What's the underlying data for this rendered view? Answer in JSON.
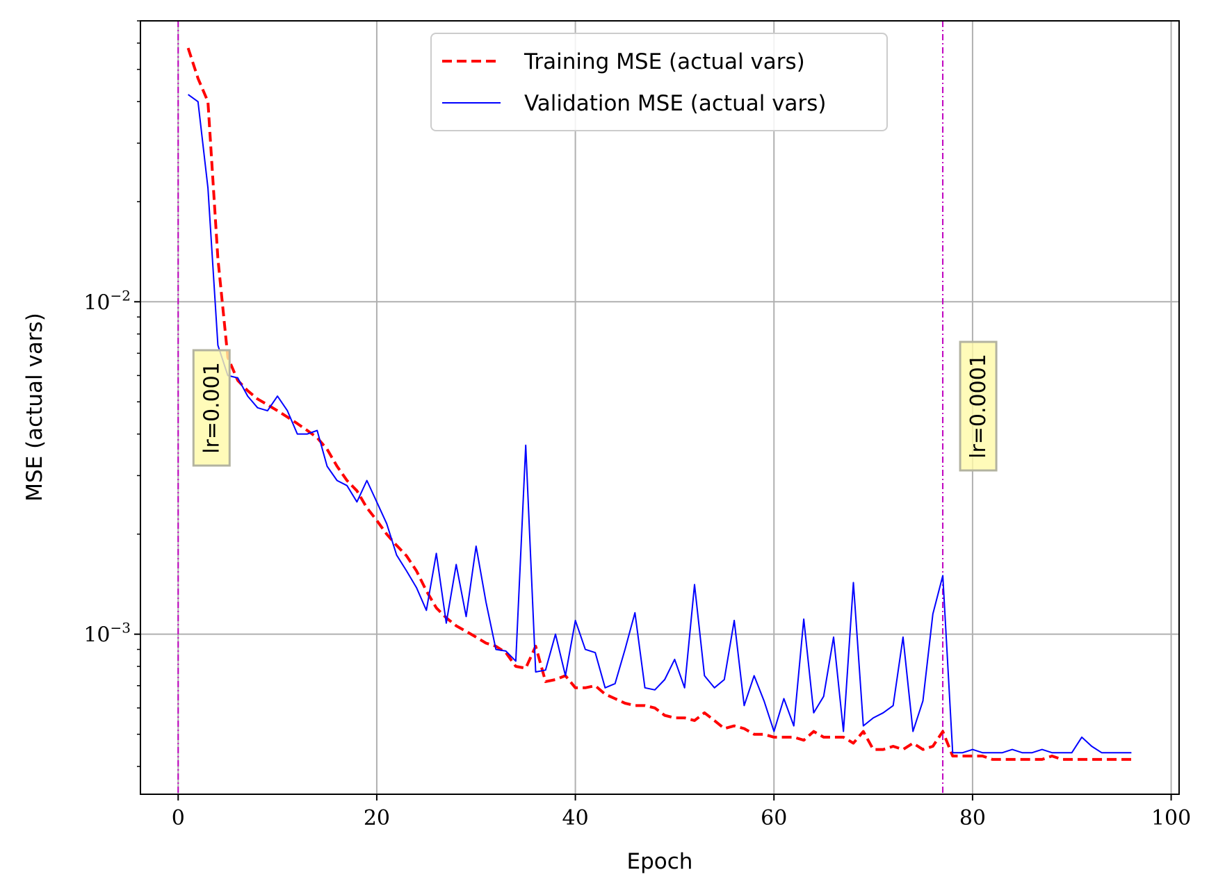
{
  "chart_data": {
    "type": "line",
    "xlabel": "Epoch",
    "ylabel": "MSE (actual vars)",
    "xlim": [
      -3.8,
      100.8
    ],
    "ylim": [
      0.00033,
      0.07
    ],
    "yscale": "log",
    "grid": true,
    "legend_position": "top-center",
    "x_ticks": [
      0,
      20,
      40,
      60,
      80,
      100
    ],
    "x_tick_labels": [
      "0",
      "20",
      "40",
      "60",
      "80",
      "100"
    ],
    "y_major_ticks": [
      {
        "value": 0.01,
        "base": "10",
        "exp": "−2"
      },
      {
        "value": 0.001,
        "base": "10",
        "exp": "−3"
      }
    ],
    "series": [
      {
        "name": "Training MSE (actual vars)",
        "color": "#ff0000",
        "style": "dashed",
        "x_start": 1,
        "values": [
          0.058,
          0.047,
          0.04,
          0.0135,
          0.0068,
          0.0058,
          0.0054,
          0.0051,
          0.0049,
          0.0047,
          0.0045,
          0.0043,
          0.0041,
          0.0039,
          0.0036,
          0.0032,
          0.0029,
          0.0027,
          0.0024,
          0.0022,
          0.002,
          0.00185,
          0.00172,
          0.00155,
          0.00135,
          0.0012,
          0.00112,
          0.00106,
          0.00102,
          0.00098,
          0.00094,
          0.00092,
          0.00088,
          0.0008,
          0.00079,
          0.00092,
          0.00072,
          0.00073,
          0.00075,
          0.00069,
          0.00069,
          0.0007,
          0.00066,
          0.00064,
          0.00062,
          0.00061,
          0.00061,
          0.0006,
          0.00057,
          0.00056,
          0.00056,
          0.00055,
          0.00058,
          0.00055,
          0.00052,
          0.00053,
          0.00052,
          0.0005,
          0.0005,
          0.00049,
          0.00049,
          0.00049,
          0.00048,
          0.00051,
          0.00049,
          0.00049,
          0.00049,
          0.00047,
          0.00051,
          0.00045,
          0.00045,
          0.00046,
          0.00045,
          0.00047,
          0.00045,
          0.00046,
          0.00051,
          0.00043,
          0.00043,
          0.00043,
          0.00043,
          0.00042,
          0.00042,
          0.00042,
          0.00042,
          0.00042,
          0.00042,
          0.00043,
          0.00042,
          0.00042,
          0.00042,
          0.00042,
          0.00042,
          0.00042,
          0.00042,
          0.00042
        ]
      },
      {
        "name": "Validation MSE (actual vars)",
        "color": "#0000ff",
        "style": "solid",
        "x_start": 1,
        "values": [
          0.042,
          0.04,
          0.022,
          0.0074,
          0.006,
          0.0059,
          0.0052,
          0.0048,
          0.0047,
          0.0052,
          0.0047,
          0.004,
          0.004,
          0.0041,
          0.0032,
          0.0029,
          0.0028,
          0.0025,
          0.0029,
          0.0025,
          0.00215,
          0.00173,
          0.00155,
          0.00138,
          0.00118,
          0.00175,
          0.00108,
          0.00162,
          0.00113,
          0.00184,
          0.00125,
          0.0009,
          0.00089,
          0.00083,
          0.0037,
          0.00077,
          0.00078,
          0.001,
          0.00075,
          0.0011,
          0.0009,
          0.00088,
          0.00069,
          0.00071,
          0.0009,
          0.00116,
          0.00069,
          0.00068,
          0.00073,
          0.00084,
          0.00069,
          0.00141,
          0.00075,
          0.00069,
          0.00073,
          0.0011,
          0.00061,
          0.00075,
          0.00063,
          0.00051,
          0.00064,
          0.00053,
          0.00111,
          0.00058,
          0.00065,
          0.00098,
          0.00051,
          0.00143,
          0.00053,
          0.00056,
          0.00058,
          0.00061,
          0.00098,
          0.00051,
          0.00063,
          0.00115,
          0.0015,
          0.00044,
          0.00044,
          0.00045,
          0.00044,
          0.00044,
          0.00044,
          0.00045,
          0.00044,
          0.00044,
          0.00045,
          0.00044,
          0.00044,
          0.00044,
          0.00049,
          0.00046,
          0.00044,
          0.00044,
          0.00044,
          0.00044
        ]
      }
    ],
    "vlines": [
      {
        "x": 0,
        "color": "#bf00bf",
        "label": "lr=0.001"
      },
      {
        "x": 77,
        "color": "#bf00bf",
        "label": "lr=0.0001"
      }
    ],
    "annotation_box_color": "#fffaa8"
  }
}
